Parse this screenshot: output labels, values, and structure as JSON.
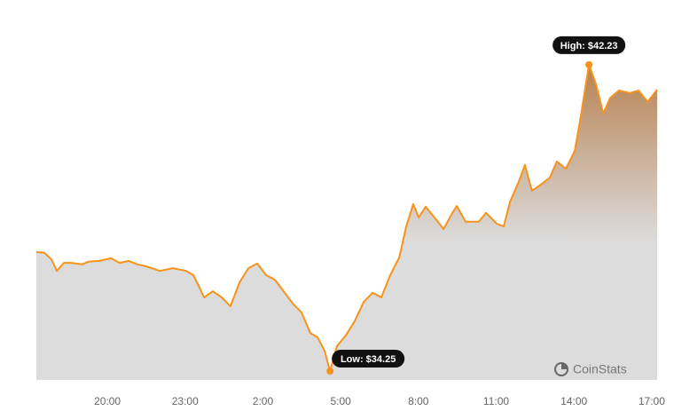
{
  "chart_data": {
    "type": "area",
    "x": [
      17.26,
      17.57,
      17.84,
      18.05,
      18.32,
      18.6,
      19.01,
      19.28,
      19.69,
      20.14,
      20.48,
      20.82,
      21.16,
      21.5,
      22.02,
      22.53,
      23.04,
      23.32,
      23.52,
      23.73,
      24.07,
      24.41,
      24.75,
      25.1,
      25.44,
      25.78,
      26.12,
      26.46,
      26.8,
      27.15,
      27.49,
      27.83,
      28.11,
      28.38,
      28.59,
      28.86,
      29.2,
      29.54,
      29.89,
      30.23,
      30.57,
      30.91,
      31.26,
      31.53,
      31.8,
      32.01,
      32.28,
      32.62,
      32.97,
      33.31,
      33.48,
      33.82,
      34.33,
      34.61,
      35.02,
      35.29,
      35.53,
      35.87,
      36.11,
      36.38,
      36.73,
      37.07,
      37.34,
      37.69,
      38.03,
      38.27,
      38.58,
      38.85,
      39.13,
      39.4,
      39.74,
      40.15,
      40.49,
      40.84,
      41.21
    ],
    "series": [
      {
        "color": "#f7931a",
        "values": [
          37.35,
          37.33,
          37.16,
          36.86,
          37.07,
          37.07,
          37.03,
          37.1,
          37.12,
          37.19,
          37.07,
          37.12,
          37.03,
          36.98,
          36.86,
          36.93,
          36.86,
          36.75,
          36.47,
          36.17,
          36.33,
          36.17,
          35.94,
          36.56,
          36.93,
          37.05,
          36.75,
          36.63,
          36.33,
          36.01,
          35.78,
          35.24,
          35.13,
          34.78,
          34.25,
          34.9,
          35.18,
          35.55,
          36.05,
          36.29,
          36.17,
          36.75,
          37.21,
          38.02,
          38.6,
          38.25,
          38.53,
          38.25,
          37.95,
          38.37,
          38.55,
          38.14,
          38.14,
          38.37,
          38.09,
          38.02,
          38.65,
          39.18,
          39.62,
          38.95,
          39.11,
          39.29,
          39.71,
          39.52,
          39.99,
          40.91,
          42.23,
          41.72,
          40.96,
          41.37,
          41.56,
          41.49,
          41.56,
          41.26,
          41.58
        ]
      }
    ],
    "xlim": [
      17.26,
      41.21
    ],
    "ylim": [
      34.02,
      42.99
    ],
    "xticks": [
      {
        "value": 20,
        "label": "20:00"
      },
      {
        "value": 23,
        "label": "23:00"
      },
      {
        "value": 26,
        "label": "2:00"
      },
      {
        "value": 29,
        "label": "5:00"
      },
      {
        "value": 32,
        "label": "8:00"
      },
      {
        "value": 35,
        "label": "11:00"
      },
      {
        "value": 38,
        "label": "14:00"
      },
      {
        "value": 41,
        "label": "17:00"
      }
    ],
    "annotations": [
      {
        "text": "High: $42.23",
        "x": 38.58,
        "y": 42.23,
        "side": "top"
      },
      {
        "text": "Low: $34.25",
        "x": 28.59,
        "y": 34.25,
        "side": "right"
      }
    ],
    "watermark": "CoinStats"
  }
}
